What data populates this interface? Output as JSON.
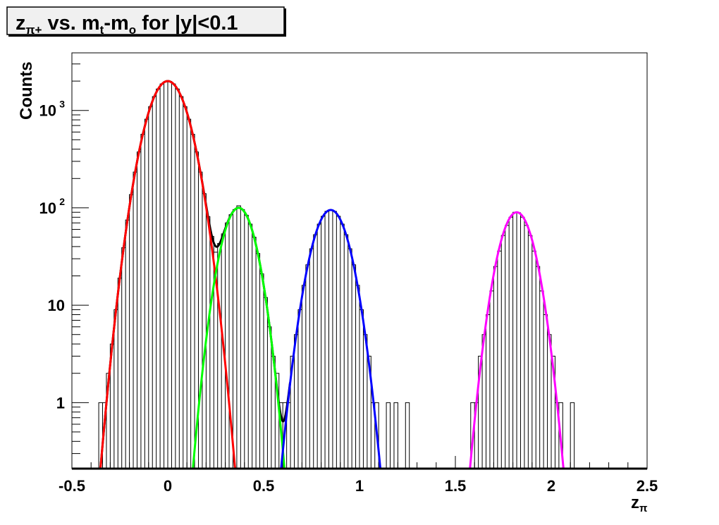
{
  "chart_data": {
    "type": "bar",
    "title_main": "z",
    "title_sub": "π+",
    "title_rest1": " vs. m",
    "title_sub2": "t",
    "title_rest2": "-m",
    "title_sub3": "o",
    "title_rest3": " for |y|<0.1",
    "xlabel_main": "z",
    "xlabel_sub": "π",
    "ylabel": "Counts",
    "xlim": [
      -0.5,
      2.5
    ],
    "ylim": [
      0.21,
      3900
    ],
    "yscale": "log",
    "grid": false,
    "x_ticks": [
      {
        "v": -0.5,
        "label": "-0.5"
      },
      {
        "v": 0,
        "label": "0"
      },
      {
        "v": 0.5,
        "label": "0.5"
      },
      {
        "v": 1,
        "label": "1"
      },
      {
        "v": 1.5,
        "label": "1.5"
      },
      {
        "v": 2,
        "label": "2"
      },
      {
        "v": 2.5,
        "label": "2.5"
      }
    ],
    "y_ticks": [
      {
        "v": 1,
        "label": "1",
        "exp": ""
      },
      {
        "v": 10,
        "label": "10",
        "exp": ""
      },
      {
        "v": 100,
        "label": "10",
        "exp": "2"
      },
      {
        "v": 1000,
        "label": "10",
        "exp": "3"
      }
    ],
    "histogram": {
      "bin_width": 0.02,
      "bins": [
        [
          -0.35,
          1
        ],
        [
          -0.33,
          1
        ],
        [
          -0.31,
          2
        ],
        [
          -0.29,
          4
        ],
        [
          -0.27,
          9
        ],
        [
          -0.25,
          19
        ],
        [
          -0.23,
          39
        ],
        [
          -0.21,
          75
        ],
        [
          -0.19,
          137
        ],
        [
          -0.17,
          233
        ],
        [
          -0.15,
          375
        ],
        [
          -0.13,
          569
        ],
        [
          -0.11,
          813
        ],
        [
          -0.09,
          1095
        ],
        [
          -0.07,
          1389
        ],
        [
          -0.05,
          1661
        ],
        [
          -0.03,
          1870
        ],
        [
          -0.01,
          1985
        ],
        [
          0.01,
          1985
        ],
        [
          0.03,
          1870
        ],
        [
          0.05,
          1661
        ],
        [
          0.07,
          1389
        ],
        [
          0.09,
          1095
        ],
        [
          0.11,
          813
        ],
        [
          0.13,
          569
        ],
        [
          0.15,
          375
        ],
        [
          0.17,
          233
        ],
        [
          0.19,
          140
        ],
        [
          0.21,
          81
        ],
        [
          0.23,
          51
        ],
        [
          0.25,
          35
        ],
        [
          0.27,
          43
        ],
        [
          0.29,
          54
        ],
        [
          0.31,
          70
        ],
        [
          0.33,
          85
        ],
        [
          0.35,
          96
        ],
        [
          0.37,
          105
        ],
        [
          0.39,
          96
        ],
        [
          0.41,
          84
        ],
        [
          0.43,
          68
        ],
        [
          0.45,
          50
        ],
        [
          0.47,
          34
        ],
        [
          0.49,
          21
        ],
        [
          0.51,
          12
        ],
        [
          0.53,
          6
        ],
        [
          0.55,
          3
        ],
        [
          0.57,
          2
        ],
        [
          0.59,
          1
        ],
        [
          0.61,
          1
        ],
        [
          0.63,
          1
        ],
        [
          0.65,
          3
        ],
        [
          0.67,
          5
        ],
        [
          0.69,
          9
        ],
        [
          0.71,
          16
        ],
        [
          0.73,
          26
        ],
        [
          0.75,
          38
        ],
        [
          0.77,
          53
        ],
        [
          0.79,
          68
        ],
        [
          0.81,
          82
        ],
        [
          0.83,
          92
        ],
        [
          0.85,
          95
        ],
        [
          0.87,
          92
        ],
        [
          0.89,
          82
        ],
        [
          0.91,
          68
        ],
        [
          0.93,
          53
        ],
        [
          0.95,
          38
        ],
        [
          0.97,
          26
        ],
        [
          0.99,
          16
        ],
        [
          1.01,
          9
        ],
        [
          1.03,
          5
        ],
        [
          1.05,
          3
        ],
        [
          1.07,
          1
        ],
        [
          1.09,
          1
        ],
        [
          1.15,
          1
        ],
        [
          1.19,
          1
        ],
        [
          1.25,
          1
        ],
        [
          1.59,
          1
        ],
        [
          1.61,
          1
        ],
        [
          1.63,
          3
        ],
        [
          1.65,
          5
        ],
        [
          1.67,
          8
        ],
        [
          1.69,
          14
        ],
        [
          1.71,
          25
        ],
        [
          1.73,
          36
        ],
        [
          1.75,
          52
        ],
        [
          1.77,
          66
        ],
        [
          1.79,
          80
        ],
        [
          1.81,
          90
        ],
        [
          1.83,
          89
        ],
        [
          1.85,
          80
        ],
        [
          1.87,
          66
        ],
        [
          1.89,
          52
        ],
        [
          1.91,
          36
        ],
        [
          1.93,
          25
        ],
        [
          1.95,
          14
        ],
        [
          1.97,
          8
        ],
        [
          1.99,
          5
        ],
        [
          2.01,
          3
        ],
        [
          2.03,
          1
        ],
        [
          2.05,
          1
        ],
        [
          2.11,
          1
        ]
      ]
    },
    "fits": [
      {
        "amplitude": 2000,
        "mean": 0.0,
        "sigma": 0.082,
        "range": [
          -0.36,
          0.36
        ],
        "color": "#ff0000"
      },
      {
        "amplitude": 100,
        "mean": 0.37,
        "sigma": 0.068,
        "range": [
          0.07,
          0.64
        ],
        "color": "#00ff00"
      },
      {
        "amplitude": 95,
        "mean": 0.85,
        "sigma": 0.074,
        "range": [
          0.5,
          1.13
        ],
        "color": "#0000ff"
      },
      {
        "amplitude": 90,
        "mean": 1.82,
        "sigma": 0.07,
        "range": [
          1.55,
          2.13
        ],
        "color": "#ff00ff"
      }
    ],
    "combined_fit": {
      "color": "#000000",
      "range": [
        -0.36,
        0.64
      ]
    }
  }
}
